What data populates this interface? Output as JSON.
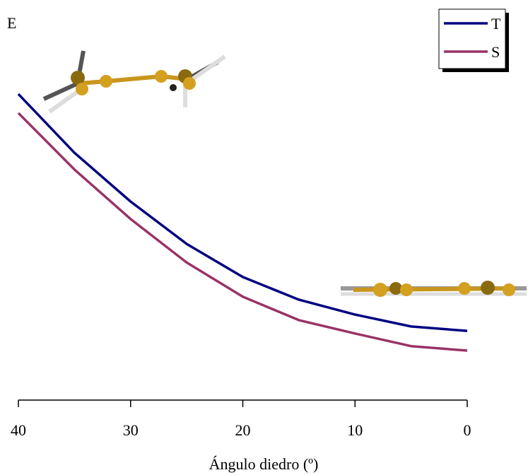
{
  "chart_data": {
    "type": "line",
    "x_label": "Ángulo diedro (º)",
    "y_label": "E",
    "x": [
      40,
      35,
      30,
      25,
      20,
      15,
      10,
      5,
      0
    ],
    "xlim": [
      40,
      0
    ],
    "xticks": [
      40,
      30,
      20,
      10,
      0
    ],
    "ylim": [
      0,
      100
    ],
    "series": [
      {
        "name": "T",
        "color": "#000080",
        "values": [
          82.3,
          66.5,
          53.4,
          42,
          33.1,
          27,
          23.0,
          19.8,
          18.6
        ]
      },
      {
        "name": "S",
        "color": "#993366",
        "values": [
          77.2,
          62,
          48.7,
          37,
          27.8,
          21.5,
          17.9,
          14.5,
          13.3
        ]
      }
    ]
  }
}
